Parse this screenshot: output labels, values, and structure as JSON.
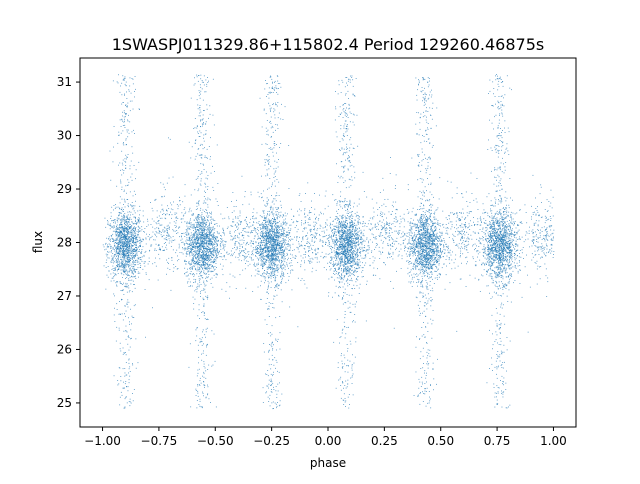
{
  "chart_data": {
    "type": "scatter",
    "title": "1SWASPJ011329.86+115802.4 Period 129260.46875s",
    "xlabel": "phase",
    "ylabel": "flux",
    "xlim": [
      -1.1,
      1.1
    ],
    "ylim": [
      24.55,
      31.45
    ],
    "x_ticks": [
      -1.0,
      -0.75,
      -0.5,
      -0.25,
      0.0,
      0.25,
      0.5,
      0.75,
      1.0
    ],
    "x_tick_labels": [
      "−1.00",
      "−0.75",
      "−0.50",
      "−0.25",
      "0.00",
      "0.25",
      "0.50",
      "0.75",
      "1.00"
    ],
    "y_ticks": [
      25,
      26,
      27,
      28,
      29,
      30,
      31
    ],
    "y_tick_labels": [
      "25",
      "26",
      "27",
      "28",
      "29",
      "30",
      "31"
    ],
    "grid": false,
    "legend": "none",
    "marker_color": "#1f77b4",
    "baseline_flux": 27.95,
    "phase_range": [
      -1.0,
      1.0
    ],
    "flux_range": [
      24.85,
      31.15
    ],
    "clusters": [
      {
        "center": -0.9,
        "spread": 0.07,
        "flux_center": 27.95,
        "flux_spread": 0.32,
        "tail_low": 24.9,
        "tail_high": 31.15
      },
      {
        "center": -0.56,
        "spread": 0.07,
        "flux_center": 27.95,
        "flux_spread": 0.32,
        "tail_low": 24.9,
        "tail_high": 31.15
      },
      {
        "center": -0.25,
        "spread": 0.07,
        "flux_center": 27.95,
        "flux_spread": 0.32,
        "tail_low": 24.9,
        "tail_high": 31.15
      },
      {
        "center": 0.08,
        "spread": 0.07,
        "flux_center": 27.95,
        "flux_spread": 0.32,
        "tail_low": 24.9,
        "tail_high": 31.15
      },
      {
        "center": 0.43,
        "spread": 0.07,
        "flux_center": 27.95,
        "flux_spread": 0.32,
        "tail_low": 24.9,
        "tail_high": 31.15
      },
      {
        "center": 0.76,
        "spread": 0.07,
        "flux_center": 27.95,
        "flux_spread": 0.32,
        "tail_low": 24.9,
        "tail_high": 31.15
      }
    ],
    "gap_groups": [
      {
        "center": -0.72,
        "flux_center": 28.2
      },
      {
        "center": -0.4,
        "flux_center": 28.1
      },
      {
        "center": -0.08,
        "flux_center": 28.1
      },
      {
        "center": 0.26,
        "flux_center": 28.15
      },
      {
        "center": 0.6,
        "flux_center": 28.2
      },
      {
        "center": 0.95,
        "flux_center": 28.1
      }
    ]
  }
}
